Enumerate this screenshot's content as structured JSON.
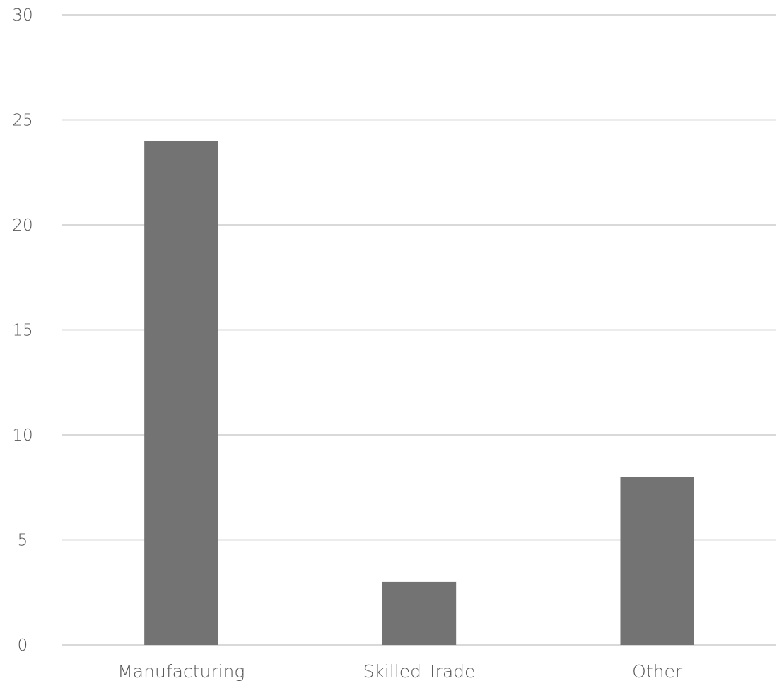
{
  "chart_data": {
    "type": "bar",
    "categories": [
      "Manufacturing",
      "Skilled Trade",
      "Other"
    ],
    "series": [
      {
        "values": [
          24,
          3,
          8
        ]
      }
    ],
    "title": "",
    "xlabel": "",
    "ylabel": "",
    "ylim": [
      0,
      30
    ],
    "y_ticks": [
      0,
      5,
      10,
      15,
      20,
      25,
      30
    ],
    "grid": true,
    "legend": "none"
  },
  "colors": {
    "bar": "#737373",
    "gridline": "#d9d9d9",
    "tick_text": "#595959",
    "category_text": "#595959"
  }
}
